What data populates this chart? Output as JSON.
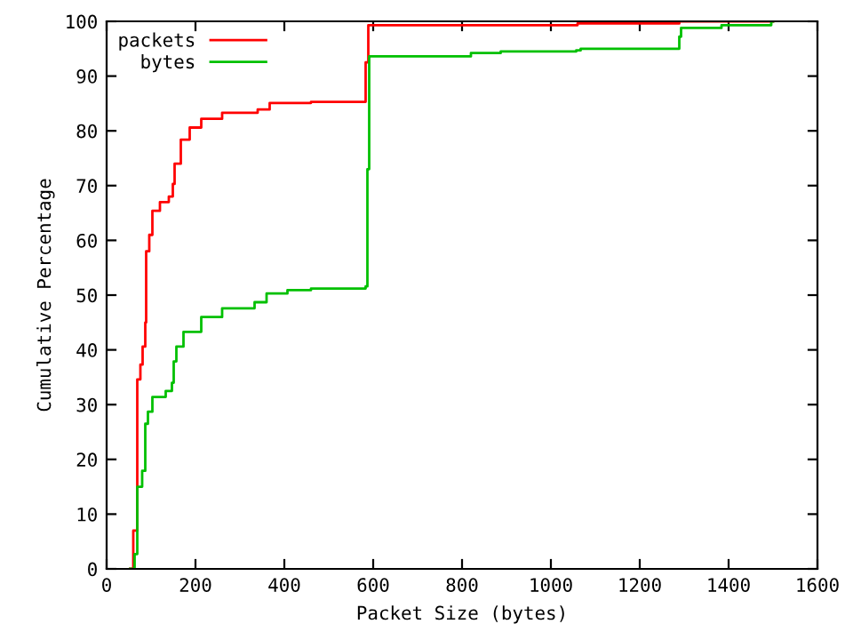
{
  "chart_data": {
    "type": "step",
    "xlabel": "Packet Size (bytes)",
    "ylabel": "Cumulative Percentage",
    "xlim": [
      0,
      1600
    ],
    "xticks": [
      0,
      200,
      400,
      600,
      800,
      1000,
      1200,
      1400,
      1600
    ],
    "ylim": [
      0,
      100
    ],
    "yticks": [
      0,
      10,
      20,
      30,
      40,
      50,
      60,
      70,
      80,
      90,
      100
    ],
    "legend": "top left",
    "grid": false,
    "series": [
      {
        "name": "packets",
        "color": "#ff0000",
        "x": [
          53,
          60,
          69,
          76,
          81,
          87,
          89,
          96,
          103,
          120,
          140,
          149,
          153,
          167,
          187,
          213,
          260,
          340,
          367,
          460,
          583,
          589,
          1060,
          1289,
          1500
        ],
        "values": [
          0,
          7,
          34.6,
          37.3,
          40.6,
          45,
          58,
          61,
          65.4,
          67,
          68,
          70.3,
          74,
          78.4,
          80.6,
          82.2,
          83.3,
          83.9,
          85.1,
          85.3,
          92.5,
          99.3,
          99.6,
          100,
          100
        ]
      },
      {
        "name": "bytes",
        "color": "#00c000",
        "x": [
          53,
          63,
          69,
          80,
          87,
          93,
          103,
          133,
          147,
          151,
          157,
          173,
          213,
          260,
          333,
          360,
          407,
          460,
          583,
          587,
          591,
          820,
          887,
          1057,
          1067,
          1289,
          1293,
          1384,
          1496,
          1500
        ],
        "values": [
          0,
          2.7,
          15,
          17.9,
          26.5,
          28.7,
          31.4,
          32.5,
          34,
          37.9,
          40.6,
          43.3,
          46,
          47.6,
          48.7,
          50.3,
          50.9,
          51.2,
          51.6,
          73,
          93.6,
          94.2,
          94.5,
          94.7,
          95,
          97.2,
          98.8,
          99.3,
          100,
          100
        ]
      }
    ]
  }
}
